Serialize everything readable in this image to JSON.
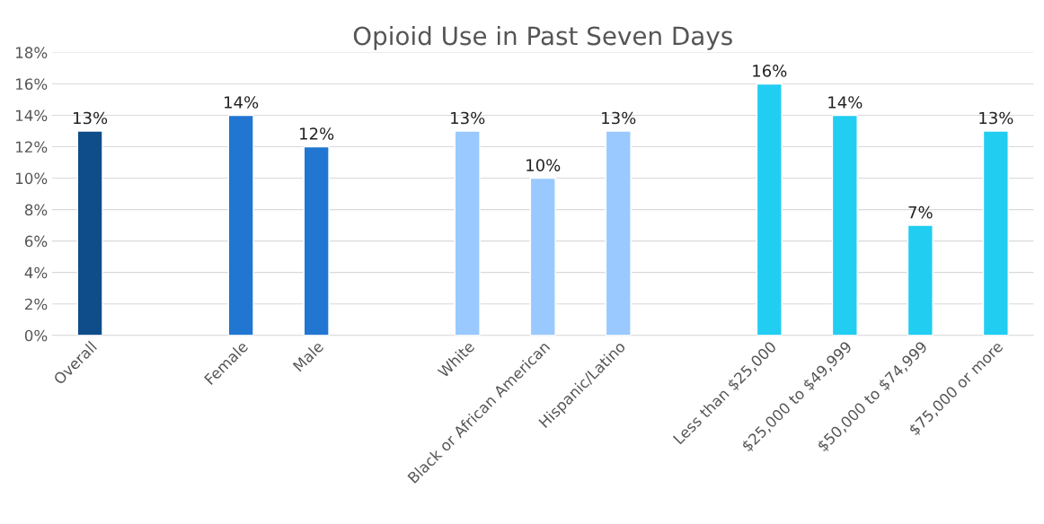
{
  "chart_data": {
    "type": "bar",
    "title": "Opioid Use in Past Seven Days",
    "categories": [
      "Overall",
      null,
      "Female",
      "Male",
      null,
      "White",
      "Black or African American",
      "Hispanic/Latino",
      null,
      "Less than $25,000",
      "$25,000 to $49,999",
      "$50,000 to $74,999",
      "$75,000 or more"
    ],
    "values": [
      13,
      null,
      14,
      12,
      null,
      13,
      10,
      13,
      null,
      16,
      14,
      7,
      13
    ],
    "colors": [
      "#0f4c8a",
      null,
      "#2176d2",
      "#2176d2",
      null,
      "#99c9ff",
      "#99c9ff",
      "#99c9ff",
      null,
      "#22cdf2",
      "#22cdf2",
      "#22cdf2",
      "#22cdf2"
    ],
    "value_labels": [
      "13%",
      null,
      "14%",
      "12%",
      null,
      "13%",
      "10%",
      "13%",
      null,
      "16%",
      "14%",
      "7%",
      "13%"
    ],
    "ylim": [
      0,
      18
    ],
    "yticks": [
      {
        "value": 0,
        "label": "0%"
      },
      {
        "value": 2,
        "label": "2%"
      },
      {
        "value": 4,
        "label": "4%"
      },
      {
        "value": 6,
        "label": "6%"
      },
      {
        "value": 8,
        "label": "8%"
      },
      {
        "value": 10,
        "label": "10%"
      },
      {
        "value": 12,
        "label": "12%"
      },
      {
        "value": 14,
        "label": "14%"
      },
      {
        "value": 16,
        "label": "16%"
      },
      {
        "value": 18,
        "label": "18%"
      }
    ],
    "grid": "y"
  }
}
